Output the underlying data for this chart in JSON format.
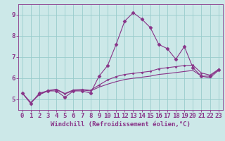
{
  "background_color": "#cce8e8",
  "grid_color": "#99cccc",
  "line_color": "#883388",
  "marker_color": "#883388",
  "xlabel": "Windchill (Refroidissement éolien,°C)",
  "ylim": [
    4.5,
    9.5
  ],
  "xlim": [
    -0.5,
    23.5
  ],
  "yticks": [
    5,
    6,
    7,
    8,
    9
  ],
  "xticks": [
    0,
    1,
    2,
    3,
    4,
    5,
    6,
    7,
    8,
    9,
    10,
    11,
    12,
    13,
    14,
    15,
    16,
    17,
    18,
    19,
    20,
    21,
    22,
    23
  ],
  "series1_x": [
    0,
    1,
    2,
    3,
    4,
    5,
    6,
    7,
    8,
    9,
    10,
    11,
    12,
    13,
    14,
    15,
    16,
    17,
    18,
    19,
    20,
    21,
    22,
    23
  ],
  "series1_y": [
    5.3,
    4.8,
    5.3,
    5.4,
    5.4,
    5.1,
    5.4,
    5.4,
    5.3,
    6.1,
    6.6,
    7.6,
    8.7,
    9.1,
    8.8,
    8.4,
    7.6,
    7.4,
    6.9,
    7.5,
    6.5,
    6.1,
    6.1,
    6.4
  ],
  "series2_x": [
    0,
    1,
    2,
    3,
    4,
    5,
    6,
    7,
    8,
    9,
    10,
    11,
    12,
    13,
    14,
    15,
    16,
    17,
    18,
    19,
    20,
    21,
    22,
    23
  ],
  "series2_y": [
    5.3,
    4.85,
    5.25,
    5.42,
    5.48,
    5.28,
    5.45,
    5.47,
    5.43,
    5.68,
    5.92,
    6.08,
    6.18,
    6.23,
    6.28,
    6.33,
    6.45,
    6.5,
    6.55,
    6.6,
    6.62,
    6.25,
    6.15,
    6.42
  ],
  "series3_x": [
    0,
    1,
    2,
    3,
    4,
    5,
    6,
    7,
    8,
    9,
    10,
    11,
    12,
    13,
    14,
    15,
    16,
    17,
    18,
    19,
    20,
    21,
    22,
    23
  ],
  "series3_y": [
    5.3,
    4.85,
    5.22,
    5.4,
    5.46,
    5.26,
    5.42,
    5.44,
    5.4,
    5.58,
    5.72,
    5.84,
    5.94,
    6.0,
    6.05,
    6.1,
    6.18,
    6.22,
    6.27,
    6.32,
    6.37,
    6.1,
    6.02,
    6.37
  ],
  "xlabel_fontsize": 6.5,
  "tick_fontsize": 6.5
}
